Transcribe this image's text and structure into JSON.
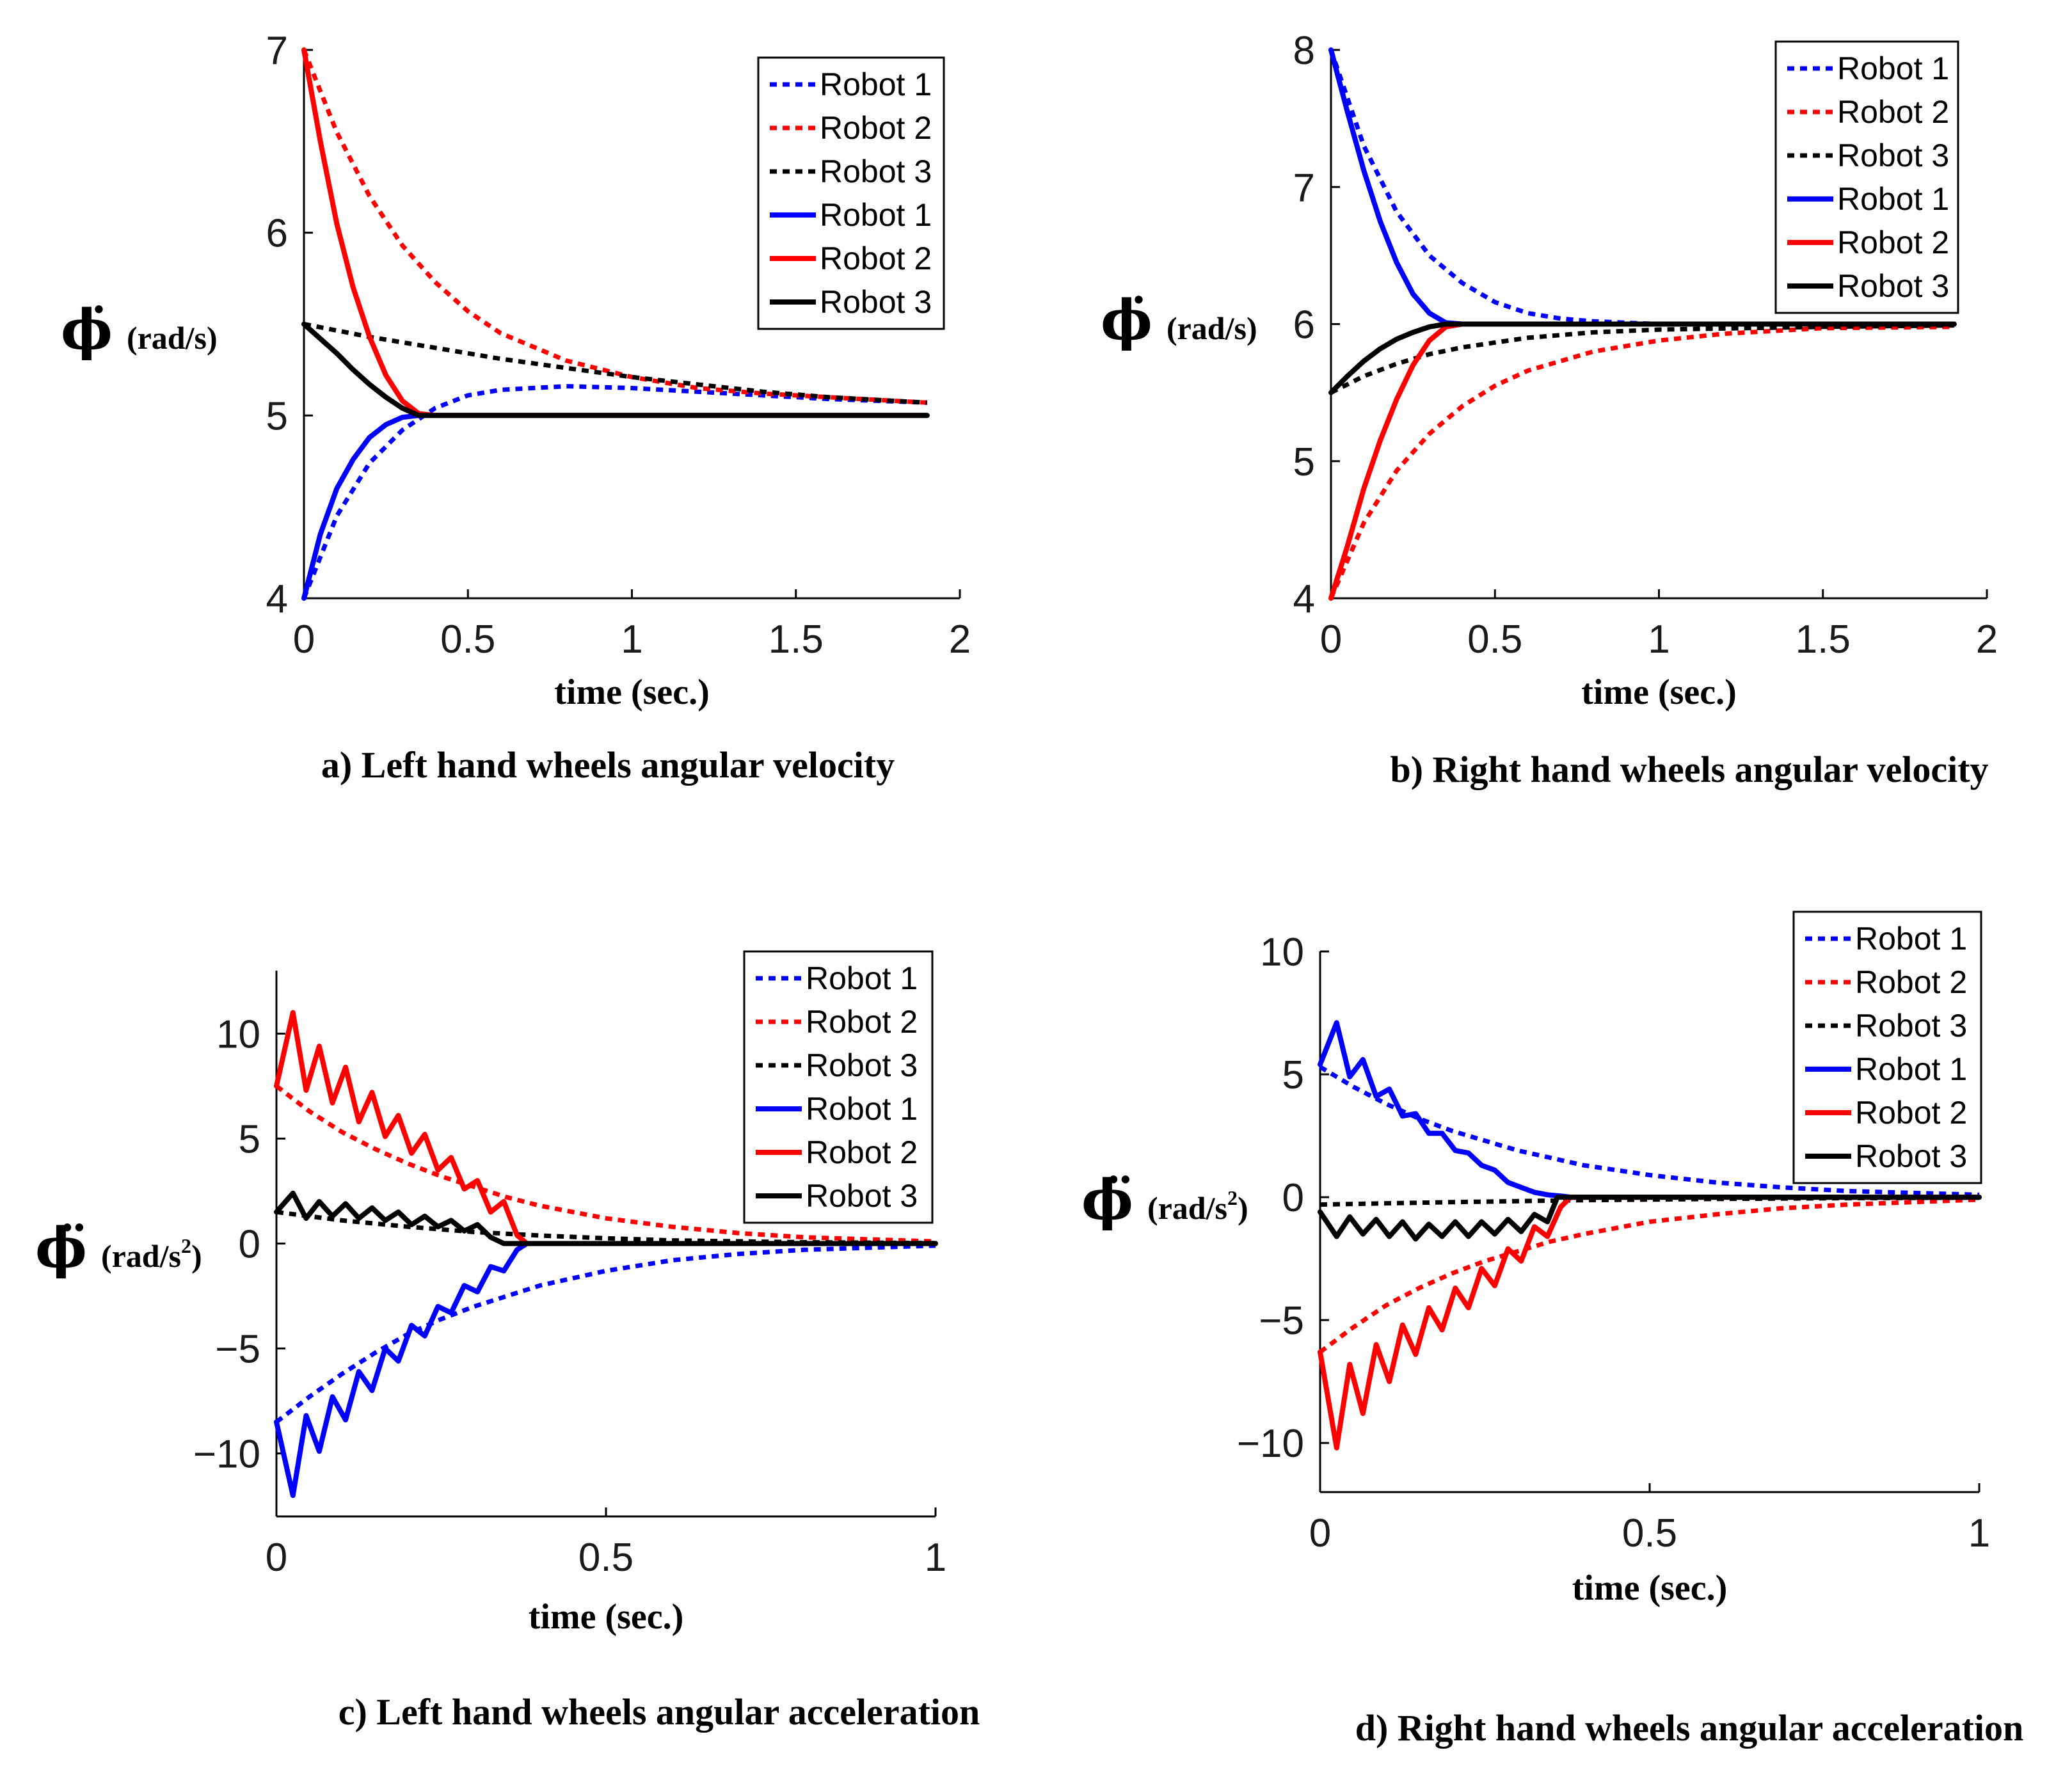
{
  "chart_data": [
    {
      "type": "line",
      "caption": "a) Left hand wheels angular velocity",
      "xlabel": "time (sec.)",
      "ylabel_symbol": "ϕ̇",
      "ylabel_unit": "(rad/s)",
      "ylabel_sup": "",
      "xlim": [
        0,
        2
      ],
      "ylim": [
        4,
        7
      ],
      "xticks": [
        0,
        0.5,
        1,
        1.5,
        2
      ],
      "xtick_labels": [
        "0",
        "0.5",
        "1",
        "1.5",
        "2"
      ],
      "yticks": [
        4,
        5,
        6,
        7
      ],
      "ytick_labels": [
        "4",
        "5",
        "6",
        "7"
      ],
      "legend": [
        "Robot 1",
        "Robot 2",
        "Robot 3",
        "Robot 1",
        "Robot 2",
        "Robot 3"
      ],
      "legend_position": "top-right",
      "series": [
        {
          "name": "Robot 1",
          "style": "dotted",
          "color": "#0000ff",
          "x": [
            0,
            0.1,
            0.2,
            0.3,
            0.4,
            0.5,
            0.6,
            0.8,
            1.0,
            1.2,
            1.4,
            1.6,
            1.9
          ],
          "y": [
            4.0,
            4.45,
            4.74,
            4.92,
            5.04,
            5.11,
            5.14,
            5.16,
            5.15,
            5.13,
            5.11,
            5.09,
            5.07
          ]
        },
        {
          "name": "Robot 2",
          "style": "dotted",
          "color": "#ff0000",
          "x": [
            0,
            0.1,
            0.2,
            0.3,
            0.4,
            0.5,
            0.6,
            0.8,
            1.0,
            1.2,
            1.4,
            1.6,
            1.9
          ],
          "y": [
            7.0,
            6.55,
            6.2,
            5.93,
            5.73,
            5.57,
            5.45,
            5.3,
            5.21,
            5.15,
            5.12,
            5.1,
            5.07
          ]
        },
        {
          "name": "Robot 3",
          "style": "dotted",
          "color": "#000000",
          "x": [
            0,
            0.2,
            0.4,
            0.6,
            0.8,
            1.0,
            1.2,
            1.4,
            1.6,
            1.9
          ],
          "y": [
            5.5,
            5.43,
            5.37,
            5.31,
            5.26,
            5.21,
            5.17,
            5.13,
            5.1,
            5.07
          ]
        },
        {
          "name": "Robot 1",
          "style": "solid",
          "color": "#0000ff",
          "x": [
            0,
            0.05,
            0.1,
            0.15,
            0.2,
            0.25,
            0.3,
            0.35,
            0.4,
            0.6,
            1.0,
            1.5,
            1.9
          ],
          "y": [
            4.0,
            4.35,
            4.6,
            4.76,
            4.88,
            4.95,
            4.99,
            5.0,
            5.0,
            5.0,
            5.0,
            5.0,
            5.0
          ]
        },
        {
          "name": "Robot 2",
          "style": "solid",
          "color": "#ff0000",
          "x": [
            0,
            0.05,
            0.1,
            0.15,
            0.2,
            0.25,
            0.3,
            0.35,
            0.4,
            0.6,
            1.0,
            1.5,
            1.9
          ],
          "y": [
            7.0,
            6.5,
            6.05,
            5.7,
            5.43,
            5.22,
            5.08,
            5.01,
            5.0,
            5.0,
            5.0,
            5.0,
            5.0
          ]
        },
        {
          "name": "Robot 3",
          "style": "solid",
          "color": "#000000",
          "x": [
            0,
            0.05,
            0.1,
            0.15,
            0.2,
            0.25,
            0.3,
            0.35,
            0.4,
            0.6,
            1.0,
            1.5,
            1.9
          ],
          "y": [
            5.5,
            5.42,
            5.34,
            5.25,
            5.17,
            5.1,
            5.04,
            5.0,
            5.0,
            5.0,
            5.0,
            5.0,
            5.0
          ]
        }
      ]
    },
    {
      "type": "line",
      "caption": "b) Right hand wheels angular velocity",
      "xlabel": "time (sec.)",
      "ylabel_symbol": "ϕ̇",
      "ylabel_unit": "(rad/s)",
      "ylabel_sup": "",
      "xlim": [
        0,
        2
      ],
      "ylim": [
        4,
        8
      ],
      "xticks": [
        0,
        0.5,
        1,
        1.5,
        2
      ],
      "xtick_labels": [
        "0",
        "0.5",
        "1",
        "1.5",
        "2"
      ],
      "yticks": [
        4,
        5,
        6,
        7,
        8
      ],
      "ytick_labels": [
        "4",
        "5",
        "6",
        "7",
        "8"
      ],
      "legend": [
        "Robot 1",
        "Robot 2",
        "Robot 3",
        "Robot 1",
        "Robot 2",
        "Robot 3"
      ],
      "legend_position": "top-right",
      "series": [
        {
          "name": "Robot 1",
          "style": "dotted",
          "color": "#0000ff",
          "x": [
            0,
            0.1,
            0.2,
            0.3,
            0.4,
            0.5,
            0.6,
            0.7,
            0.8,
            1.0,
            1.5,
            1.9
          ],
          "y": [
            8.0,
            7.3,
            6.82,
            6.5,
            6.3,
            6.16,
            6.08,
            6.04,
            6.02,
            6.0,
            6.0,
            6.0
          ]
        },
        {
          "name": "Robot 2",
          "style": "dotted",
          "color": "#ff0000",
          "x": [
            0,
            0.1,
            0.2,
            0.3,
            0.4,
            0.5,
            0.6,
            0.8,
            1.0,
            1.2,
            1.5,
            1.9
          ],
          "y": [
            4.0,
            4.55,
            4.93,
            5.2,
            5.4,
            5.55,
            5.66,
            5.8,
            5.88,
            5.93,
            5.97,
            5.98
          ]
        },
        {
          "name": "Robot 3",
          "style": "dotted",
          "color": "#000000",
          "x": [
            0,
            0.1,
            0.2,
            0.3,
            0.4,
            0.6,
            0.8,
            1.0,
            1.5,
            1.9
          ],
          "y": [
            5.5,
            5.62,
            5.71,
            5.78,
            5.83,
            5.9,
            5.94,
            5.96,
            5.98,
            5.99
          ]
        },
        {
          "name": "Robot 1",
          "style": "solid",
          "color": "#0000ff",
          "x": [
            0,
            0.05,
            0.1,
            0.15,
            0.2,
            0.25,
            0.3,
            0.35,
            0.4,
            0.6,
            1.0,
            1.9
          ],
          "y": [
            8.0,
            7.55,
            7.12,
            6.75,
            6.45,
            6.22,
            6.08,
            6.01,
            6.0,
            6.0,
            6.0,
            6.0
          ]
        },
        {
          "name": "Robot 2",
          "style": "solid",
          "color": "#ff0000",
          "x": [
            0,
            0.05,
            0.1,
            0.15,
            0.2,
            0.25,
            0.3,
            0.35,
            0.4,
            0.6,
            1.0,
            1.9
          ],
          "y": [
            4.0,
            4.38,
            4.8,
            5.15,
            5.45,
            5.7,
            5.88,
            5.98,
            6.0,
            6.0,
            6.0,
            6.0
          ]
        },
        {
          "name": "Robot 3",
          "style": "solid",
          "color": "#000000",
          "x": [
            0,
            0.05,
            0.1,
            0.15,
            0.2,
            0.25,
            0.3,
            0.35,
            0.4,
            0.6,
            1.0,
            1.9
          ],
          "y": [
            5.5,
            5.62,
            5.73,
            5.82,
            5.89,
            5.94,
            5.98,
            6.0,
            6.0,
            6.0,
            6.0,
            6.0
          ]
        }
      ]
    },
    {
      "type": "line",
      "caption": "c) Left hand wheels angular acceleration",
      "xlabel": "time (sec.)",
      "ylabel_symbol": "ϕ̈",
      "ylabel_unit": "(rad/s",
      "ylabel_sup": "2",
      "ylabel_unit_end": ")",
      "xlim": [
        0,
        1
      ],
      "ylim": [
        -13,
        13
      ],
      "xticks": [
        0,
        0.5,
        1
      ],
      "xtick_labels": [
        "0",
        "0.5",
        "1"
      ],
      "yticks": [
        -10,
        -5,
        0,
        5,
        10
      ],
      "ytick_labels": [
        "−10",
        "−5",
        "0",
        "5",
        "10"
      ],
      "legend": [
        "Robot 1",
        "Robot 2",
        "Robot 3",
        "Robot 1",
        "Robot 2",
        "Robot 3"
      ],
      "legend_position": "top-right",
      "series": [
        {
          "name": "Robot 1",
          "style": "dotted",
          "color": "#0000ff",
          "x": [
            0,
            0.05,
            0.1,
            0.15,
            0.2,
            0.25,
            0.3,
            0.35,
            0.4,
            0.5,
            0.6,
            0.7,
            0.8,
            1.0
          ],
          "y": [
            -8.5,
            -7.3,
            -6.2,
            -5.2,
            -4.3,
            -3.6,
            -3.0,
            -2.5,
            -2.0,
            -1.3,
            -0.8,
            -0.5,
            -0.3,
            -0.1
          ]
        },
        {
          "name": "Robot 2",
          "style": "dotted",
          "color": "#ff0000",
          "x": [
            0,
            0.05,
            0.1,
            0.15,
            0.2,
            0.25,
            0.3,
            0.35,
            0.4,
            0.5,
            0.6,
            0.7,
            0.8,
            1.0
          ],
          "y": [
            7.5,
            6.3,
            5.3,
            4.5,
            3.8,
            3.2,
            2.7,
            2.2,
            1.8,
            1.2,
            0.8,
            0.5,
            0.3,
            0.1
          ]
        },
        {
          "name": "Robot 3",
          "style": "dotted",
          "color": "#000000",
          "x": [
            0,
            0.1,
            0.2,
            0.3,
            0.4,
            0.5,
            0.6,
            0.8,
            1.0
          ],
          "y": [
            1.5,
            1.1,
            0.8,
            0.55,
            0.38,
            0.25,
            0.15,
            0.06,
            0.02
          ]
        },
        {
          "name": "Robot 1",
          "style": "solid",
          "color": "#0000ff",
          "x": [
            0,
            0.025,
            0.045,
            0.065,
            0.085,
            0.105,
            0.125,
            0.145,
            0.165,
            0.185,
            0.205,
            0.225,
            0.245,
            0.265,
            0.285,
            0.305,
            0.325,
            0.345,
            0.365,
            0.38,
            0.4,
            0.6,
            1.0
          ],
          "y": [
            -8.5,
            -12.0,
            -8.2,
            -9.9,
            -7.3,
            -8.4,
            -6.1,
            -7.0,
            -5.0,
            -5.6,
            -3.9,
            -4.4,
            -3.0,
            -3.3,
            -2.0,
            -2.3,
            -1.1,
            -1.3,
            -0.3,
            0.0,
            0.0,
            0.0,
            0.0
          ]
        },
        {
          "name": "Robot 2",
          "style": "solid",
          "color": "#ff0000",
          "x": [
            0,
            0.025,
            0.045,
            0.065,
            0.085,
            0.105,
            0.125,
            0.145,
            0.165,
            0.185,
            0.205,
            0.225,
            0.245,
            0.265,
            0.285,
            0.305,
            0.325,
            0.345,
            0.365,
            0.38,
            0.4,
            0.6,
            1.0
          ],
          "y": [
            7.5,
            11.0,
            7.3,
            9.4,
            6.7,
            8.4,
            5.8,
            7.2,
            5.1,
            6.1,
            4.3,
            5.2,
            3.5,
            4.1,
            2.6,
            3.0,
            1.5,
            2.0,
            0.4,
            0.0,
            0.0,
            0.0,
            0.0
          ]
        },
        {
          "name": "Robot 3",
          "style": "solid",
          "color": "#000000",
          "x": [
            0,
            0.025,
            0.045,
            0.065,
            0.085,
            0.105,
            0.125,
            0.145,
            0.165,
            0.185,
            0.205,
            0.225,
            0.245,
            0.265,
            0.285,
            0.305,
            0.325,
            0.345,
            0.36,
            0.4,
            0.6,
            1.0
          ],
          "y": [
            1.5,
            2.4,
            1.2,
            2.0,
            1.3,
            1.9,
            1.2,
            1.7,
            1.1,
            1.5,
            0.9,
            1.3,
            0.8,
            1.1,
            0.6,
            0.9,
            0.3,
            0.0,
            0.0,
            0.0,
            0.0,
            0.0
          ]
        }
      ]
    },
    {
      "type": "line",
      "caption": "d) Right hand wheels angular acceleration",
      "xlabel": "time (sec.)",
      "ylabel_symbol": "ϕ̈",
      "ylabel_unit": "(rad/s",
      "ylabel_sup": "2",
      "ylabel_unit_end": ")",
      "xlim": [
        0,
        1
      ],
      "ylim": [
        -12,
        10
      ],
      "xticks": [
        0,
        0.5,
        1
      ],
      "xtick_labels": [
        "0",
        "0.5",
        "1"
      ],
      "yticks": [
        -10,
        -5,
        0,
        5,
        10
      ],
      "ytick_labels": [
        "−10",
        "−5",
        "0",
        "5",
        "10"
      ],
      "legend": [
        "Robot 1",
        "Robot 2",
        "Robot 3",
        "Robot 1",
        "Robot 2",
        "Robot 3"
      ],
      "legend_position": "top-right",
      "series": [
        {
          "name": "Robot 1",
          "style": "dotted",
          "color": "#0000ff",
          "x": [
            0,
            0.05,
            0.1,
            0.15,
            0.2,
            0.25,
            0.3,
            0.35,
            0.4,
            0.5,
            0.6,
            0.7,
            0.8,
            1.0
          ],
          "y": [
            5.3,
            4.5,
            3.8,
            3.2,
            2.7,
            2.3,
            1.9,
            1.6,
            1.3,
            0.9,
            0.6,
            0.4,
            0.25,
            0.1
          ]
        },
        {
          "name": "Robot 2",
          "style": "dotted",
          "color": "#ff0000",
          "x": [
            0,
            0.05,
            0.1,
            0.15,
            0.2,
            0.25,
            0.3,
            0.35,
            0.4,
            0.5,
            0.6,
            0.7,
            0.8,
            1.0
          ],
          "y": [
            -6.3,
            -5.3,
            -4.4,
            -3.7,
            -3.1,
            -2.6,
            -2.2,
            -1.8,
            -1.5,
            -1.0,
            -0.7,
            -0.45,
            -0.3,
            -0.1
          ]
        },
        {
          "name": "Robot 3",
          "style": "dotted",
          "color": "#000000",
          "x": [
            0,
            0.2,
            0.4,
            0.6,
            0.8,
            1.0
          ],
          "y": [
            -0.3,
            -0.2,
            -0.12,
            -0.07,
            -0.04,
            -0.02
          ]
        },
        {
          "name": "Robot 1",
          "style": "solid",
          "color": "#0000ff",
          "x": [
            0,
            0.025,
            0.045,
            0.065,
            0.085,
            0.105,
            0.125,
            0.145,
            0.165,
            0.185,
            0.205,
            0.225,
            0.245,
            0.265,
            0.285,
            0.305,
            0.325,
            0.345,
            0.365,
            0.38,
            0.4,
            0.6,
            1.0
          ],
          "y": [
            5.4,
            7.1,
            4.9,
            5.6,
            4.1,
            4.4,
            3.3,
            3.4,
            2.6,
            2.6,
            1.9,
            1.8,
            1.3,
            1.1,
            0.6,
            0.4,
            0.2,
            0.1,
            0.05,
            0.0,
            0.0,
            0.0,
            0.0
          ]
        },
        {
          "name": "Robot 2",
          "style": "solid",
          "color": "#ff0000",
          "x": [
            0,
            0.025,
            0.045,
            0.065,
            0.085,
            0.105,
            0.125,
            0.145,
            0.165,
            0.185,
            0.205,
            0.225,
            0.245,
            0.265,
            0.285,
            0.305,
            0.325,
            0.345,
            0.365,
            0.38,
            0.4,
            0.6,
            1.0
          ],
          "y": [
            -6.3,
            -10.2,
            -6.8,
            -8.8,
            -6.0,
            -7.5,
            -5.2,
            -6.4,
            -4.5,
            -5.4,
            -3.7,
            -4.5,
            -2.9,
            -3.6,
            -2.1,
            -2.6,
            -1.2,
            -1.6,
            -0.4,
            0.0,
            0.0,
            0.0,
            0.0
          ]
        },
        {
          "name": "Robot 3",
          "style": "solid",
          "color": "#000000",
          "x": [
            0,
            0.025,
            0.045,
            0.065,
            0.085,
            0.105,
            0.125,
            0.145,
            0.165,
            0.185,
            0.205,
            0.225,
            0.245,
            0.265,
            0.285,
            0.305,
            0.325,
            0.345,
            0.36,
            0.4,
            0.6,
            1.0
          ],
          "y": [
            -0.6,
            -1.6,
            -0.8,
            -1.5,
            -0.9,
            -1.6,
            -1.0,
            -1.7,
            -1.1,
            -1.6,
            -1.0,
            -1.6,
            -1.0,
            -1.5,
            -0.9,
            -1.4,
            -0.7,
            -1.0,
            0.0,
            0.0,
            0.0,
            0.0
          ]
        }
      ]
    }
  ]
}
